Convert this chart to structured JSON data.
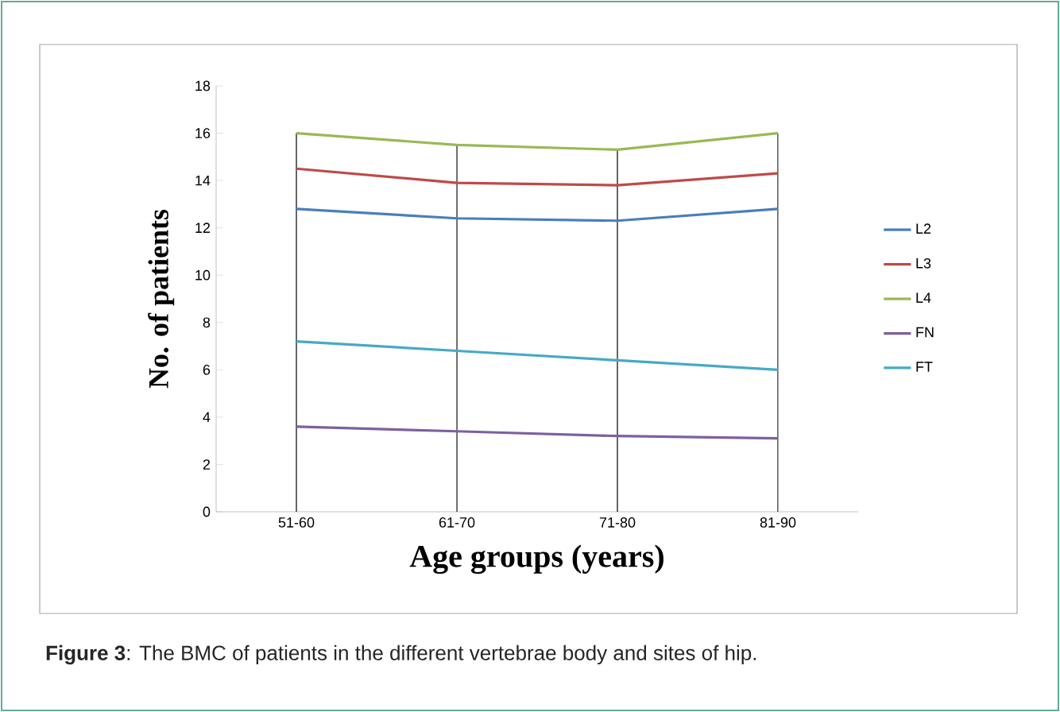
{
  "chart_data": {
    "type": "line",
    "xlabel": "Age groups (years)",
    "ylabel": "No. of patients",
    "categories": [
      "51-60",
      "61-70",
      "71-80",
      "81-90"
    ],
    "series": [
      {
        "name": "L2",
        "color": "#4a7ebb",
        "values": [
          12.8,
          12.4,
          12.3,
          12.8
        ]
      },
      {
        "name": "L3",
        "color": "#be4b48",
        "values": [
          14.5,
          13.9,
          13.8,
          14.3
        ]
      },
      {
        "name": "L4",
        "color": "#98b954",
        "values": [
          16.0,
          15.5,
          15.3,
          16.0
        ]
      },
      {
        "name": "FN",
        "color": "#7d60a0",
        "values": [
          3.6,
          3.4,
          3.2,
          3.1
        ]
      },
      {
        "name": "FT",
        "color": "#46aac5",
        "values": [
          7.2,
          6.8,
          6.4,
          6.0
        ]
      }
    ],
    "ylim": [
      0,
      18
    ],
    "yticks": [
      0,
      2,
      4,
      6,
      8,
      10,
      12,
      14,
      16,
      18
    ],
    "grid": "x",
    "legend": "right",
    "marker": "none",
    "line_style": "solid",
    "annotations": [
      "**Figure 3**: The BMC of patients in the different vertebrae body and sites of hip."
    ]
  }
}
